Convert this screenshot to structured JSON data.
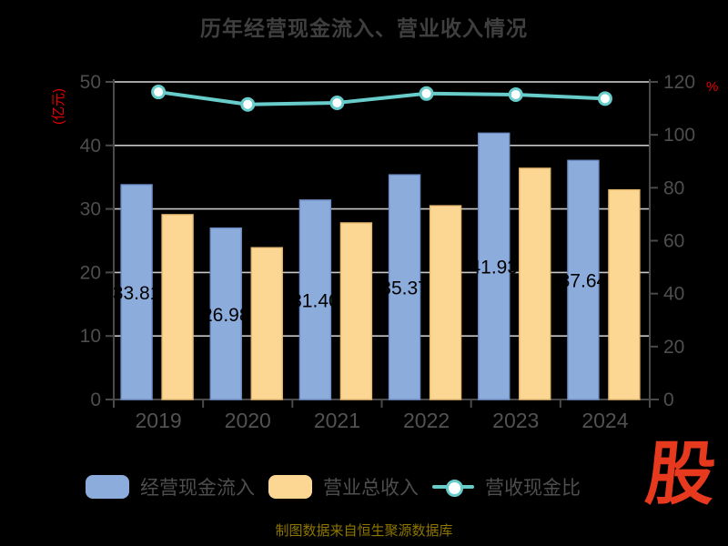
{
  "title": "历年经营现金流入、营业收入情况",
  "footer": "制图数据来自恒生聚源数据库",
  "watermark": "股",
  "legend": [
    {
      "label": "经营现金流入",
      "type": "bar",
      "color": "#8cacdc"
    },
    {
      "label": "营业总收入",
      "type": "bar",
      "color": "#fbd793"
    },
    {
      "label": "营收现金比",
      "type": "line",
      "color": "#68cccb"
    }
  ],
  "colors": {
    "background": "#000000",
    "title": "#3f3f3f",
    "axis_line": "#4a4a4a",
    "grid_line": "#c7c7c7",
    "tick_text": "#4e4e4e",
    "accent_red": "#e60000",
    "logo_red": "#e7391e",
    "footer_gold": "#8e7600",
    "bar_blue": "#8cacdc",
    "bar_blue_border": "#6e8ec8",
    "bar_yellow": "#fbd793",
    "bar_yellow_border": "#e5b96f",
    "line_teal": "#68cccb"
  },
  "chart_data": {
    "type": "bar",
    "title": "历年经营现金流入、营业收入情况",
    "categories": [
      "2019",
      "2020",
      "2021",
      "2022",
      "2023",
      "2024"
    ],
    "series": [
      {
        "name": "经营现金流入",
        "type": "bar",
        "axis": "left",
        "color": "#8cacdc",
        "border_color": "#6e8ec8",
        "values": [
          33.81,
          26.98,
          31.4,
          35.37,
          41.93,
          37.64
        ],
        "labels": [
          "33.81",
          "26.98",
          "31.40",
          "35.37",
          "41.93",
          "37.64"
        ]
      },
      {
        "name": "营业总收入",
        "type": "bar",
        "axis": "left",
        "color": "#fbd793",
        "border_color": "#e5b96f",
        "values": [
          29.1,
          23.9,
          27.8,
          30.5,
          36.4,
          33.0
        ]
      },
      {
        "name": "营收现金比",
        "type": "line",
        "axis": "right",
        "color": "#68cccb",
        "marker": "circle-white",
        "values": [
          116.2,
          111.5,
          112.1,
          115.6,
          115.2,
          113.7
        ]
      }
    ],
    "left_axis": {
      "label": "(亿元)",
      "min": 0,
      "max": 50,
      "step": 10
    },
    "right_axis": {
      "label": "%",
      "min": 0,
      "max": 120,
      "step": 20
    },
    "grid": true,
    "legend_position": "bottom"
  }
}
